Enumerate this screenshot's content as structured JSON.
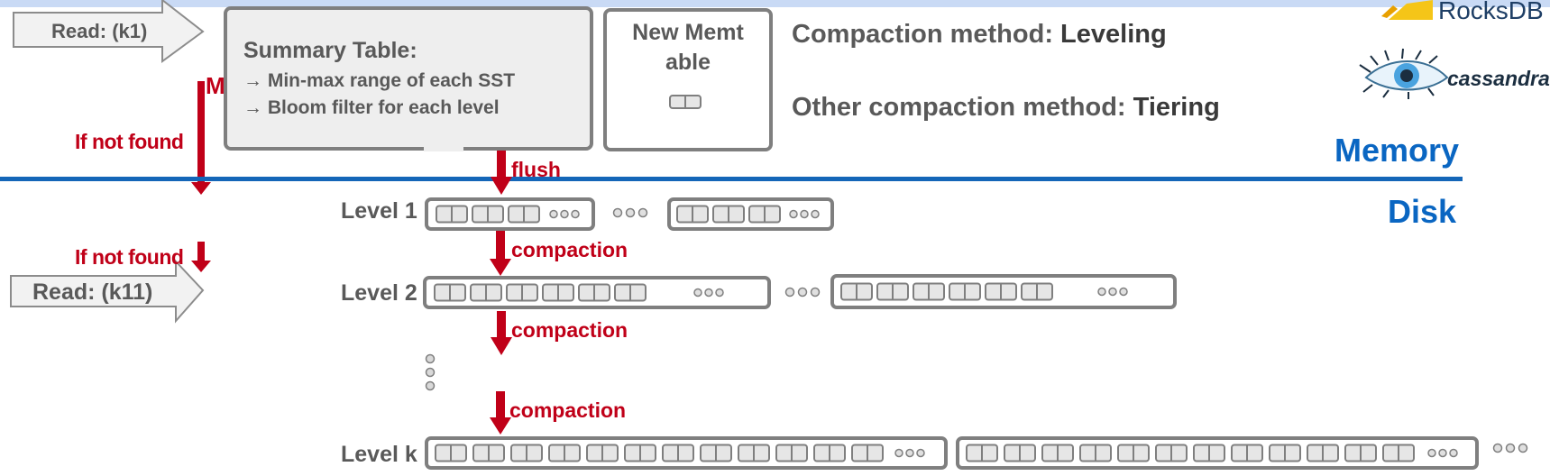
{
  "reads": {
    "read1": "Read: (k1)",
    "read2": "Read: (k11)"
  },
  "red_labels": {
    "cut_letter": "M",
    "not_found_1": "If not found",
    "not_found_2": "If not found",
    "flush": "flush",
    "compaction_1": "compaction",
    "compaction_2": "compaction",
    "compaction_3": "compaction"
  },
  "summary": {
    "title": "Summary Table:",
    "item1": "→  Min-max range of each SST",
    "item2": "→  Bloom filter for each level"
  },
  "memtable": {
    "line1": "New Memt",
    "line2": "able"
  },
  "compaction_info": {
    "method_prefix": "Compaction method: ",
    "method_value": "Leveling",
    "other_prefix": "Other compaction method: ",
    "other_value": "Tiering"
  },
  "logos": {
    "rocksdb": "RocksDB",
    "cassandra": "cassandra"
  },
  "regions": {
    "memory": "Memory",
    "disk": "Disk"
  },
  "levels": {
    "level1": "Level 1",
    "level2": "Level 2",
    "levelk": "Level k"
  },
  "colors": {
    "red": "#c00018",
    "blue": "#0a66c2",
    "gray": "#595959",
    "box_border": "#7f7f7f"
  }
}
